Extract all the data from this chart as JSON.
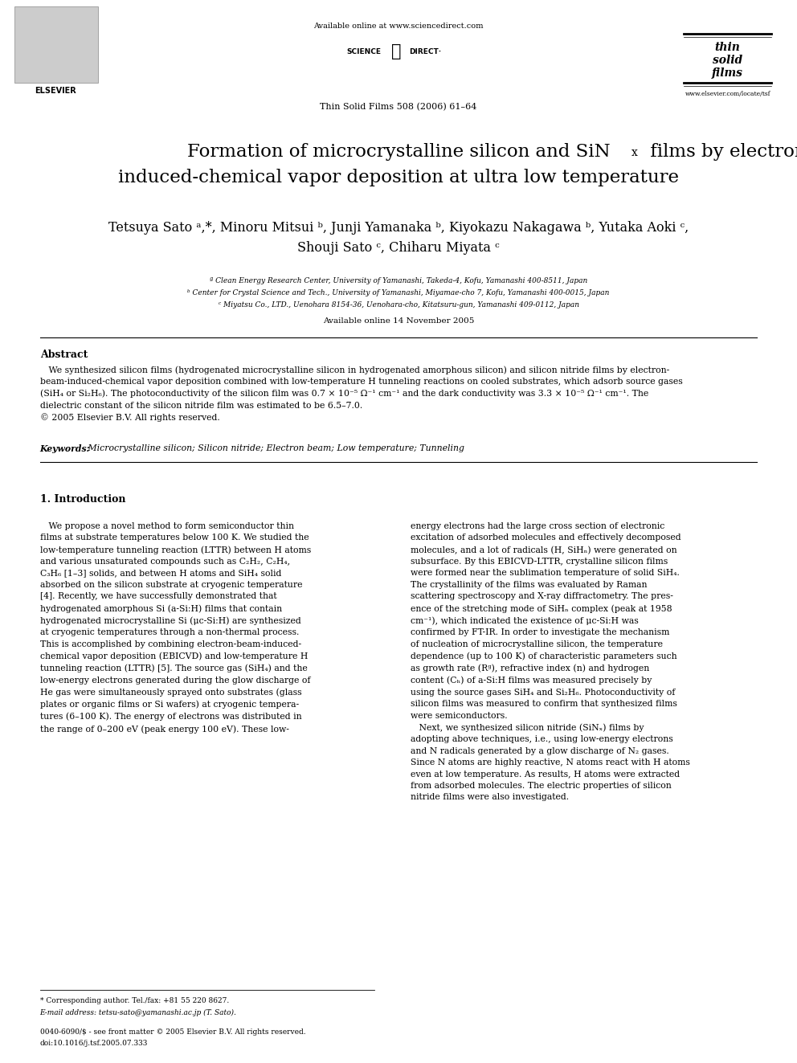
{
  "background_color": "#ffffff",
  "page_width": 9.92,
  "page_height": 13.23,
  "header_url": "Available online at www.sciencedirect.com",
  "journal_ref": "Thin Solid Films 508 (2006) 61–64",
  "affil_a": "ª Clean Energy Research Center, University of Yamanashi, Takeda-4, Kofu, Yamanashi 400-8511, Japan",
  "affil_b": "ᵇ Center for Crystal Science and Tech., University of Yamanashi, Miyamae-cho 7, Kofu, Yamanashi 400-0015, Japan",
  "affil_c": "ᶜ Miyatsu Co., LTD., Uenohara 8154-36, Uenohara-cho, Kitatsuru-gun, Yamanashi 409-0112, Japan",
  "avail_online": "Available online 14 November 2005",
  "abstract_title": "Abstract",
  "keywords_label": "Keywords:",
  "keywords_text": " Microcrystalline silicon; Silicon nitride; Electron beam; Low temperature; Tunneling",
  "section1_title": "1. Introduction",
  "footer_note": "* Corresponding author. Tel./fax: +81 55 220 8627.",
  "footer_email": "E-mail address: tetsu-sato@yamanashi.ac.jp (T. Sato).",
  "footer_issn": "0040-6090/$ - see front matter © 2005 Elsevier B.V. All rights reserved.",
  "footer_doi": "doi:10.1016/j.tsf.2005.07.333",
  "elsevier_url": "www.elsevier.com/locate/tsf"
}
